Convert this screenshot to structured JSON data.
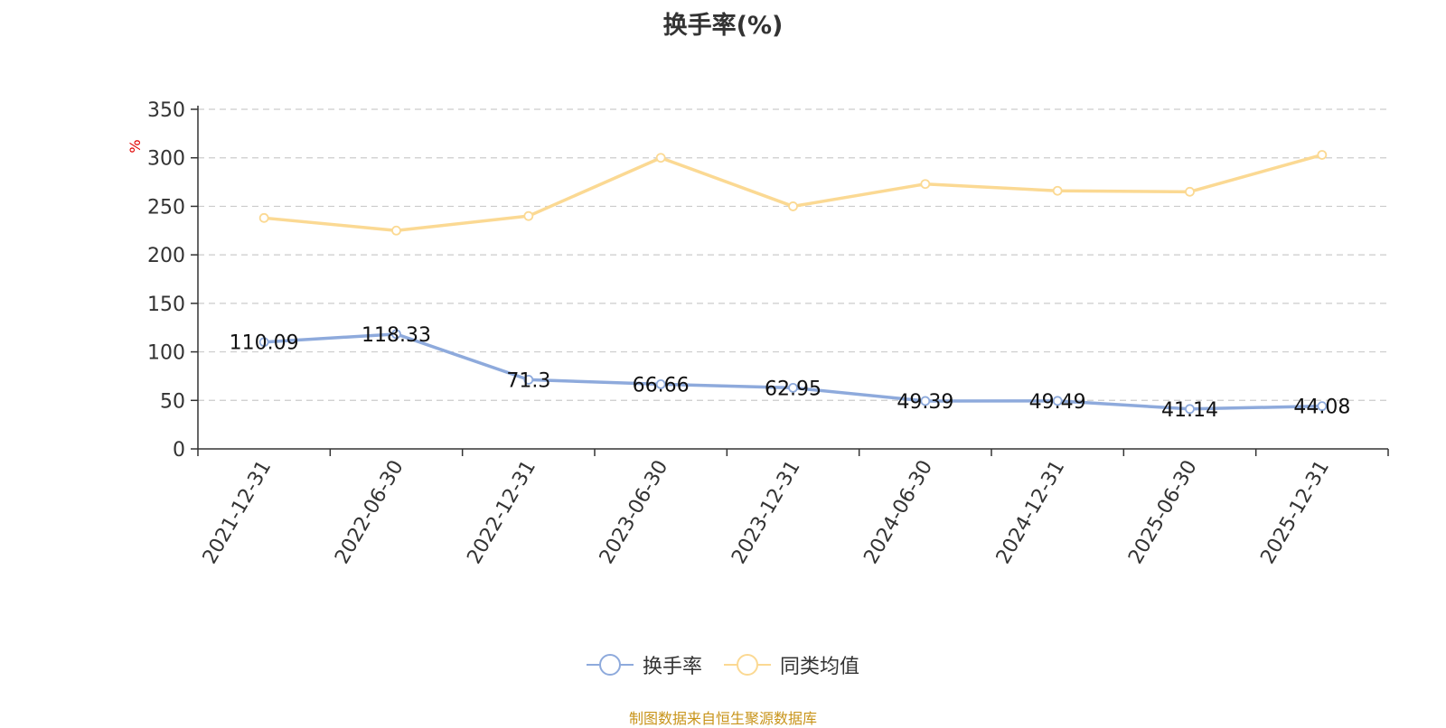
{
  "title": "换手率(%)",
  "source_text": "制图数据来自恒生聚源数据库",
  "colors": {
    "series_1": "#8eaadc",
    "series_2": "#fbd993",
    "unit_label": "#e00000",
    "source": "#c8941a",
    "grid": "#cccccc",
    "axis": "#333333"
  },
  "legend": {
    "items": [
      {
        "label": "换手率",
        "icon": "circle-marker-icon"
      },
      {
        "label": "同类均值",
        "icon": "circle-marker-icon"
      }
    ]
  },
  "chart_data": {
    "type": "line",
    "title": "换手率(%)",
    "ylabel": "%",
    "xlabel": "",
    "ylim": [
      0,
      350
    ],
    "yticks": [
      0,
      50,
      100,
      150,
      200,
      250,
      300,
      350
    ],
    "grid": true,
    "legend_position": "bottom-center",
    "categories": [
      "2021-12-31",
      "2022-06-30",
      "2022-12-31",
      "2023-06-30",
      "2023-12-31",
      "2024-06-30",
      "2024-12-31",
      "2025-06-30",
      "2025-12-31"
    ],
    "series": [
      {
        "name": "换手率",
        "values": [
          110.09,
          118.33,
          71.3,
          66.66,
          62.95,
          49.39,
          49.49,
          41.14,
          44.08
        ],
        "labels": [
          "110.09",
          "118.33",
          "71.3",
          "66.66",
          "62.95",
          "49.39",
          "49.49",
          "41.14",
          "44.08"
        ],
        "color": "#8eaadc"
      },
      {
        "name": "同类均值",
        "values": [
          238,
          225,
          240,
          300,
          250,
          273,
          266,
          265,
          303
        ],
        "color": "#fbd993"
      }
    ]
  }
}
